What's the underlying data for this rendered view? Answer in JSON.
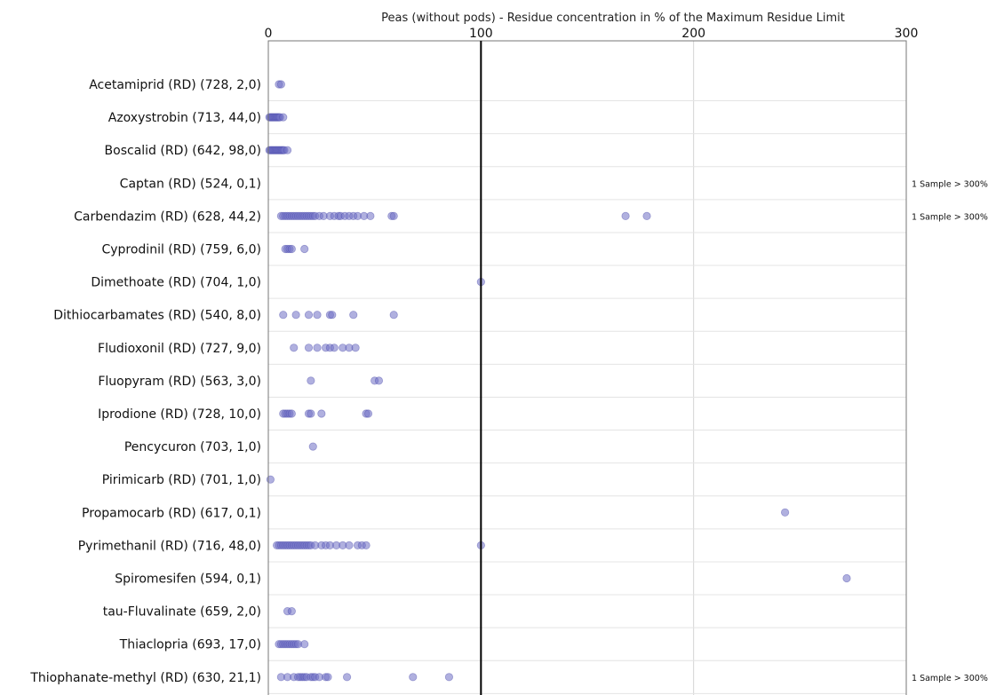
{
  "chart_data": {
    "type": "scatter",
    "title": "Peas (without pods)  - Residue concentration in % of the Maximum Residue Limit",
    "xlabel": "",
    "ylabel": "",
    "xlim": [
      0,
      300
    ],
    "x_ticks": [
      "0",
      "100",
      "200",
      "300"
    ],
    "reference_line_x": 100,
    "grid": true,
    "point_color": "#6f6fc4",
    "point_edge_color": "#4b4bab",
    "categories": [
      {
        "label": "Acetamiprid (RD) (728, 2,0)",
        "values": [
          5,
          6
        ]
      },
      {
        "label": "Azoxystrobin (713, 44,0)",
        "values": [
          0.5,
          1,
          1.5,
          2,
          2.5,
          3,
          3.5,
          4,
          4.5,
          5,
          5.5,
          7
        ]
      },
      {
        "label": "Boscalid (RD) (642, 98,0)",
        "values": [
          0.5,
          1,
          1.5,
          2,
          2.5,
          3,
          3.5,
          4,
          4.5,
          5,
          5.5,
          6,
          6.5,
          7,
          7.5,
          9
        ]
      },
      {
        "label": "Captan (RD) (524, 0,1)",
        "values": [],
        "note": "1 Sample > 300%"
      },
      {
        "label": "Carbendazim (RD) (628, 44,2)",
        "values": [
          6,
          7,
          8,
          9,
          10,
          11,
          12,
          13,
          14,
          15,
          16,
          17,
          18,
          19,
          20,
          21,
          22,
          24,
          26,
          29,
          31,
          33,
          34,
          36,
          38,
          40,
          42,
          45,
          48,
          58,
          59,
          168,
          178
        ],
        "note": "1 Sample > 300%"
      },
      {
        "label": "Cyprodinil (RD) (759, 6,0)",
        "values": [
          8,
          9,
          10,
          11,
          17
        ]
      },
      {
        "label": "Dimethoate (RD) (704, 1,0)",
        "values": [
          100
        ]
      },
      {
        "label": "Dithiocarbamates (RD) (540, 8,0)",
        "values": [
          7,
          13,
          19,
          23,
          29,
          30,
          40,
          59
        ]
      },
      {
        "label": "Fludioxonil (RD) (727, 9,0)",
        "values": [
          12,
          19,
          23,
          27,
          29,
          31,
          35,
          38,
          41
        ]
      },
      {
        "label": "Fluopyram (RD) (563, 3,0)",
        "values": [
          20,
          50,
          52
        ]
      },
      {
        "label": "Iprodione (RD) (728, 10,0)",
        "values": [
          7,
          8,
          9,
          10,
          11,
          19,
          20,
          25,
          46,
          47
        ]
      },
      {
        "label": "Pencycuron (703, 1,0)",
        "values": [
          21
        ]
      },
      {
        "label": "Pirimicarb (RD) (701, 1,0)",
        "values": [
          1
        ]
      },
      {
        "label": "Propamocarb (RD) (617, 0,1)",
        "values": [
          243
        ]
      },
      {
        "label": "Pyrimethanil (RD) (716, 48,0)",
        "values": [
          4,
          5,
          6,
          7,
          8,
          9,
          10,
          11,
          12,
          13,
          14,
          15,
          16,
          17,
          18,
          19,
          20,
          22,
          25,
          27,
          29,
          32,
          35,
          38,
          42,
          44,
          46,
          100
        ]
      },
      {
        "label": "Spiromesifen (594, 0,1)",
        "values": [
          272
        ]
      },
      {
        "label": "tau-Fluvalinate (659, 2,0)",
        "values": [
          9,
          11
        ]
      },
      {
        "label": "Thiaclopria (693, 17,0)",
        "values": [
          5,
          6,
          7,
          8,
          9,
          10,
          11,
          12,
          13,
          14,
          17
        ]
      },
      {
        "label": "Thiophanate-methyl (RD) (630, 21,1)",
        "values": [
          6,
          9,
          12,
          14,
          15,
          16,
          17,
          18,
          20,
          21,
          22,
          24,
          27,
          28,
          37,
          68,
          85
        ],
        "note": "1 Sample > 300%"
      }
    ]
  }
}
